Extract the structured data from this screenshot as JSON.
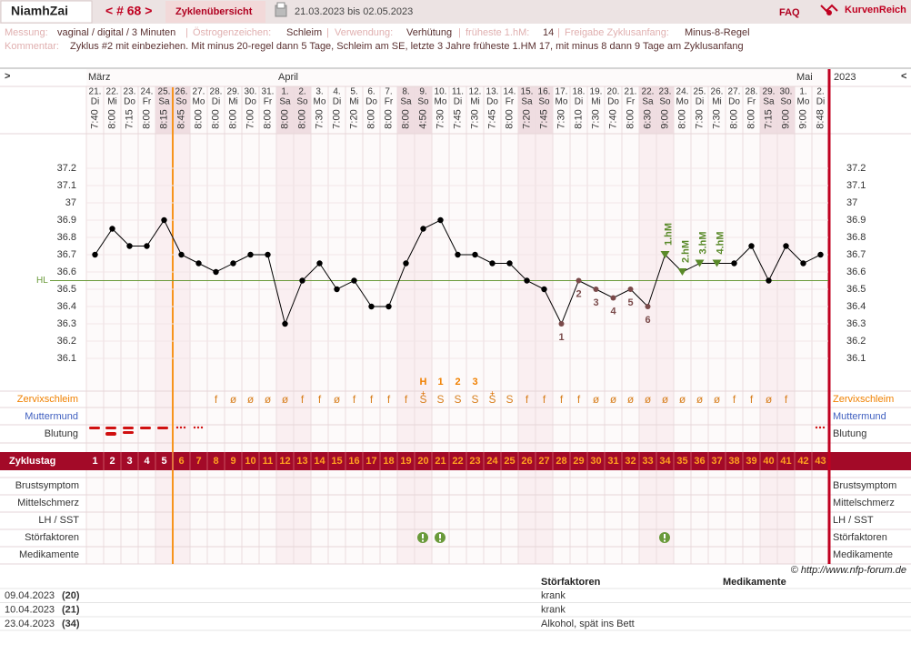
{
  "header": {
    "user": "NiamhZai",
    "cycle_nav": "< # 68 >",
    "overview": "Zyklenübersicht",
    "date_range": "21.03.2023 bis 02.05.2023",
    "faq": "FAQ",
    "site": "KurvenReich"
  },
  "info": {
    "measurement_label": "Messung:",
    "measurement": "vaginal / digital / 3 Minuten",
    "separator": "|",
    "estrogen_label": "Östrogenzeichen:",
    "estrogen": "Schleim",
    "usage_label": "Verwendung:",
    "usage": "Verhütung",
    "earliest_label": "früheste 1.hM:",
    "earliest": 14,
    "release_label": "Freigabe Zyklusanfang:",
    "release": "Minus-8-Regel",
    "comment_label": "Kommentar:",
    "comment": "Zyklus #2  mit einbeziehen. Mit minus 20-regel dann 5 Tage,  Schleim am SE, letzte 3 Jahre früheste 1.HM 17, mit minus 8 dann 9 Tage am Zyklusanfang"
  },
  "chart_data": {
    "type": "line",
    "nav": [
      ">",
      "<"
    ],
    "year": "2023",
    "months": [
      "März",
      "April",
      "Mai"
    ],
    "days": [
      "21.",
      "22.",
      "23.",
      "24.",
      "25.",
      "26.",
      "27.",
      "28.",
      "29.",
      "30.",
      "31.",
      "1.",
      "2.",
      "3.",
      "4.",
      "5.",
      "6.",
      "7.",
      "8.",
      "9.",
      "10.",
      "11.",
      "12.",
      "13.",
      "14.",
      "15.",
      "16.",
      "17.",
      "18.",
      "19.",
      "20.",
      "21.",
      "22.",
      "23.",
      "24.",
      "25.",
      "26.",
      "27.",
      "28.",
      "29.",
      "30.",
      "1.",
      "2."
    ],
    "weekdays": [
      "Di",
      "Mi",
      "Do",
      "Fr",
      "Sa",
      "So",
      "Mo",
      "Di",
      "Mi",
      "Do",
      "Fr",
      "Sa",
      "So",
      "Mo",
      "Di",
      "Mi",
      "Do",
      "Fr",
      "Sa",
      "So",
      "Mo",
      "Di",
      "Mi",
      "Do",
      "Fr",
      "Sa",
      "So",
      "Mo",
      "Di",
      "Mi",
      "Do",
      "Fr",
      "Sa",
      "So",
      "Mo",
      "Di",
      "Mi",
      "Do",
      "Fr",
      "Sa",
      "So",
      "Mo",
      "Di"
    ],
    "times": [
      "7:40",
      "8:00",
      "7:15",
      "8:00",
      "8:15",
      "8:45",
      "8:00",
      "8:00",
      "8:00",
      "7:00",
      "8:00",
      "8:00",
      "8:00",
      "7:30",
      "7:00",
      "7:20",
      "8:00",
      "8:00",
      "8:00",
      "4:50",
      "7:30",
      "7:45",
      "7:30",
      "7:45",
      "8:00",
      "7:20",
      "7:45",
      "7:30",
      "8:10",
      "7:30",
      "7:40",
      "8:00",
      "6:30",
      "9:00",
      "8:00",
      "7:30",
      "7:30",
      "8:00",
      "8:00",
      "7:15",
      "9:00",
      "9:00",
      "8:48"
    ],
    "values": [
      36.7,
      36.85,
      36.75,
      36.75,
      36.9,
      36.7,
      36.65,
      36.6,
      36.65,
      36.7,
      36.7,
      36.3,
      36.55,
      36.65,
      36.5,
      36.55,
      36.4,
      36.4,
      36.65,
      36.85,
      36.9,
      36.7,
      36.7,
      36.65,
      36.65,
      36.55,
      36.5,
      36.3,
      36.55,
      36.5,
      36.45,
      36.5,
      36.4,
      36.7,
      36.6,
      36.65,
      36.65,
      36.65,
      36.75,
      36.55,
      36.75,
      36.65,
      36.7
    ],
    "color": "#000000",
    "low_color": "#7a4a4a",
    "hm_color": "#5a8a2a",
    "ylim": [
      36.0,
      37.3
    ],
    "yticks": [
      36.1,
      36.2,
      36.3,
      36.4,
      36.5,
      36.6,
      36.7,
      36.8,
      36.9,
      37,
      37.1,
      37.2
    ],
    "coverline": {
      "label": "HL",
      "value": 36.55,
      "color": "#6a9a3a"
    },
    "low_labels": [
      null,
      null,
      null,
      null,
      null,
      null,
      null,
      null,
      null,
      null,
      null,
      null,
      null,
      null,
      null,
      null,
      null,
      null,
      null,
      null,
      null,
      null,
      null,
      null,
      null,
      null,
      null,
      "1",
      "2",
      "3",
      "4",
      "5",
      "6",
      null,
      null,
      null,
      null,
      null,
      null,
      null,
      null,
      null,
      null
    ],
    "hm_labels": [
      null,
      null,
      null,
      null,
      null,
      null,
      null,
      null,
      null,
      null,
      null,
      null,
      null,
      null,
      null,
      null,
      null,
      null,
      null,
      null,
      null,
      null,
      null,
      null,
      null,
      null,
      null,
      null,
      null,
      null,
      null,
      null,
      null,
      "1.hM",
      "2.hM",
      "3.hM",
      "4.hM",
      null,
      null,
      null,
      null,
      null,
      null
    ],
    "peak_labels": [
      null,
      null,
      null,
      null,
      null,
      null,
      null,
      null,
      null,
      null,
      null,
      null,
      null,
      null,
      null,
      null,
      null,
      null,
      null,
      "H",
      "1",
      "2",
      "3",
      null,
      null,
      null,
      null,
      null,
      null,
      null,
      null,
      null,
      null,
      null,
      null,
      null,
      null,
      null,
      null,
      null,
      null,
      null,
      null
    ],
    "mucus_extra": [
      null,
      null,
      null,
      null,
      null,
      null,
      null,
      null,
      null,
      null,
      null,
      null,
      null,
      null,
      null,
      null,
      null,
      null,
      null,
      "+",
      null,
      null,
      null,
      "+",
      null,
      null,
      null,
      null,
      null,
      null,
      null,
      null,
      null,
      null,
      null,
      null,
      null,
      null,
      null,
      null,
      null,
      null,
      null
    ],
    "cervical_mucus": [
      null,
      null,
      null,
      null,
      null,
      null,
      null,
      "f",
      "ø",
      "ø",
      "ø",
      "ø",
      "f",
      "f",
      "ø",
      "f",
      "f",
      "f",
      "f",
      "Ṡ",
      "S",
      "S",
      "S",
      "Ṡ",
      "S",
      "f",
      "f",
      "f",
      "f",
      "ø",
      "ø",
      "ø",
      "ø",
      "ø",
      "ø",
      "ø",
      "ø",
      "f",
      "f",
      "ø",
      "f",
      null,
      null
    ],
    "cycle_days": [
      1,
      2,
      3,
      4,
      5,
      6,
      7,
      8,
      9,
      10,
      11,
      12,
      13,
      14,
      15,
      16,
      17,
      18,
      19,
      20,
      21,
      22,
      23,
      24,
      25,
      26,
      27,
      28,
      29,
      30,
      31,
      32,
      33,
      34,
      35,
      36,
      37,
      38,
      39,
      40,
      41,
      42,
      43
    ],
    "row_labels": {
      "mucus": "Zervixschleim",
      "cervix": "Muttermund",
      "bleeding": "Blutung",
      "cycle_day": "Zyklustag",
      "breast": "Brustsymptom",
      "mittelschmerz": "Mittelschmerz",
      "lh": "LH / SST",
      "disturbances": "Störfaktoren",
      "medication": "Medikamente"
    }
  },
  "footer": {
    "copyright": "© http://www.nfp-forum.de",
    "headers": [
      "Störfaktoren",
      "Medikamente"
    ],
    "rows": [
      [
        "09.04.2023",
        "(20)",
        "krank"
      ],
      [
        "10.04.2023",
        "(21)",
        "krank"
      ],
      [
        "23.04.2023",
        "(34)",
        "Alkohol, spät ins Bett"
      ]
    ]
  }
}
